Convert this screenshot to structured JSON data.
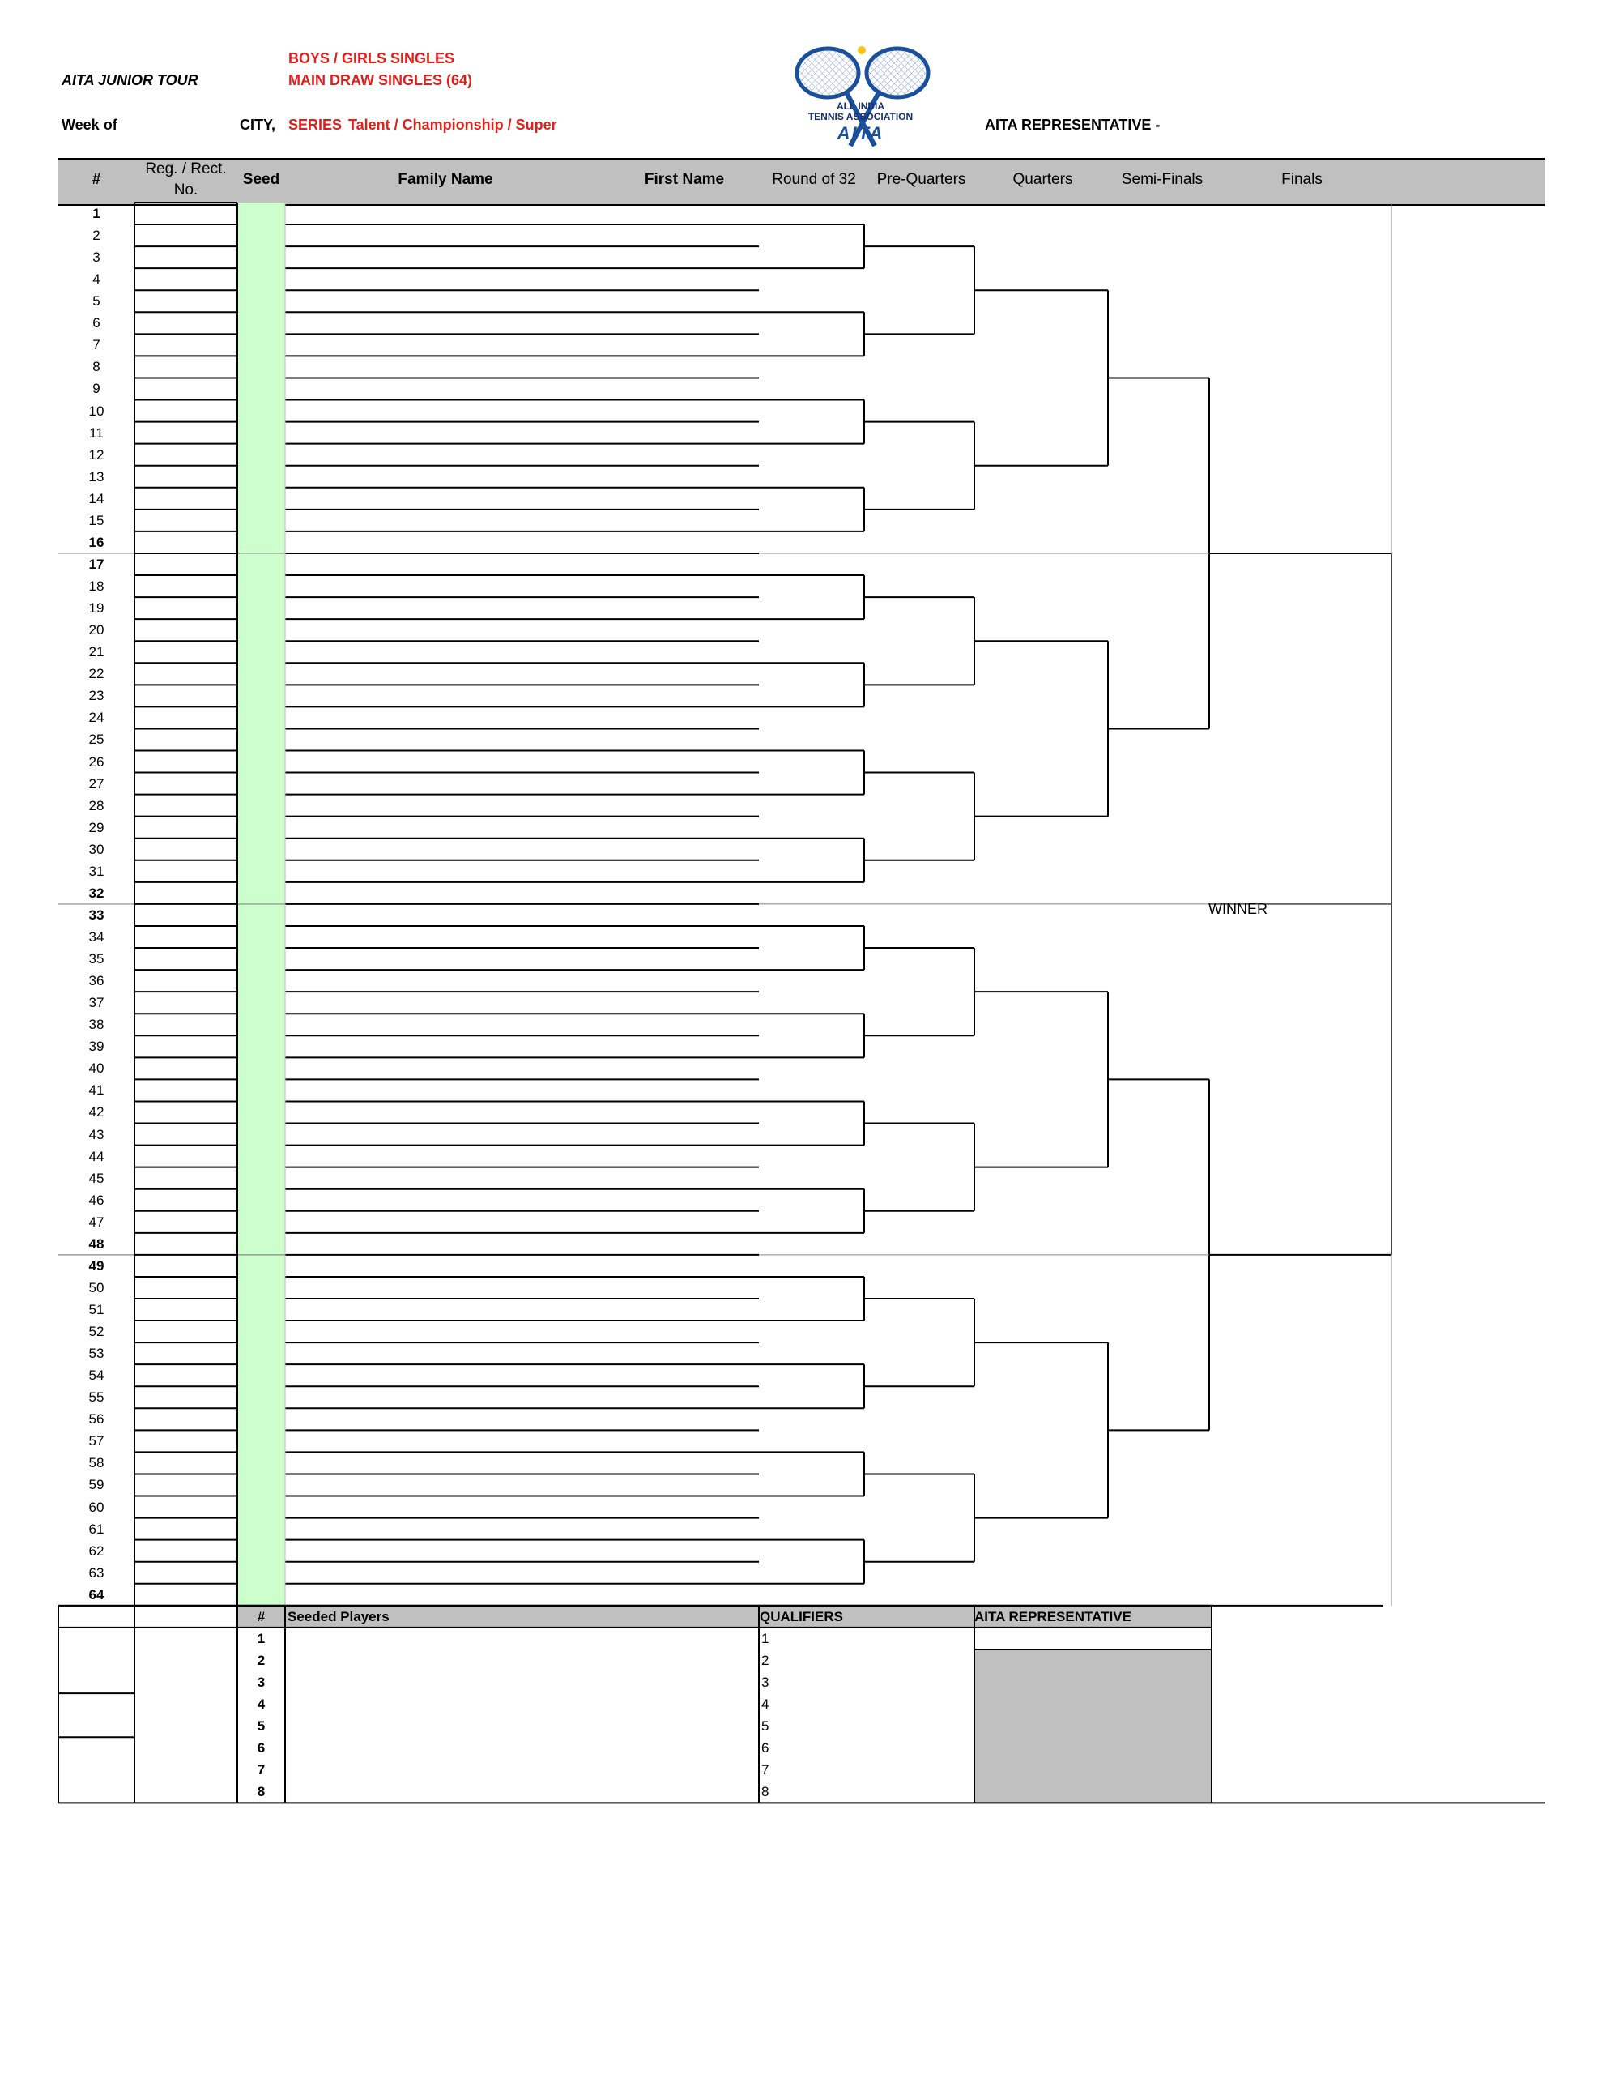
{
  "header": {
    "tour": "AITA JUNIOR TOUR",
    "event_line1": "BOYS / GIRLS SINGLES",
    "event_line2": "MAIN DRAW  SINGLES  (64)",
    "week_of": "Week of",
    "city": "CITY,",
    "series_label": "SERIES",
    "series_values": "Talent / Championship / Super",
    "representative": "AITA REPRESENTATIVE -",
    "logo": {
      "line1": "ALL INDIA",
      "line2": "TENNIS ASSOCIATION",
      "acronym": "AITA",
      "icon": "crossed-tennis-rackets-icon",
      "colors": {
        "racket": "#1a4f9c",
        "ball": "#f5c518"
      }
    }
  },
  "columns": {
    "number": "#",
    "reg_line1": "Reg. / Rect.",
    "reg_line2": "No.",
    "seed": "Seed",
    "family_name": "Family Name",
    "first_name": "First Name",
    "round_of_32": "Round of 32",
    "pre_quarters": "Pre-Quarters",
    "quarters": "Quarters",
    "semi_finals": "Semi-Finals",
    "finals": "Finals"
  },
  "draw": {
    "rows": [
      "1",
      "2",
      "3",
      "4",
      "5",
      "6",
      "7",
      "8",
      "9",
      "10",
      "11",
      "12",
      "13",
      "14",
      "15",
      "16",
      "17",
      "18",
      "19",
      "20",
      "21",
      "22",
      "23",
      "24",
      "25",
      "26",
      "27",
      "28",
      "29",
      "30",
      "31",
      "32",
      "33",
      "34",
      "35",
      "36",
      "37",
      "38",
      "39",
      "40",
      "41",
      "42",
      "43",
      "44",
      "45",
      "46",
      "47",
      "48",
      "49",
      "50",
      "51",
      "52",
      "53",
      "54",
      "55",
      "56",
      "57",
      "58",
      "59",
      "60",
      "61",
      "62",
      "63",
      "64"
    ],
    "bold_rows": [
      1,
      16,
      17,
      32,
      33,
      48,
      49,
      64
    ],
    "winner_label": "WINNER"
  },
  "footer": {
    "hash": "#",
    "seeded_players": "Seeded Players",
    "qualifiers": "QUALIFIERS",
    "representative": "AITA REPRESENTATIVE",
    "seed_numbers": [
      "1",
      "2",
      "3",
      "4",
      "5",
      "6",
      "7",
      "8"
    ],
    "qualifier_numbers": [
      "1",
      "2",
      "3",
      "4",
      "5",
      "6",
      "7",
      "8"
    ]
  },
  "colors": {
    "header_gray": "#c0c0c0",
    "seed_green": "#ccffcc",
    "title_red": "#e0201b"
  }
}
